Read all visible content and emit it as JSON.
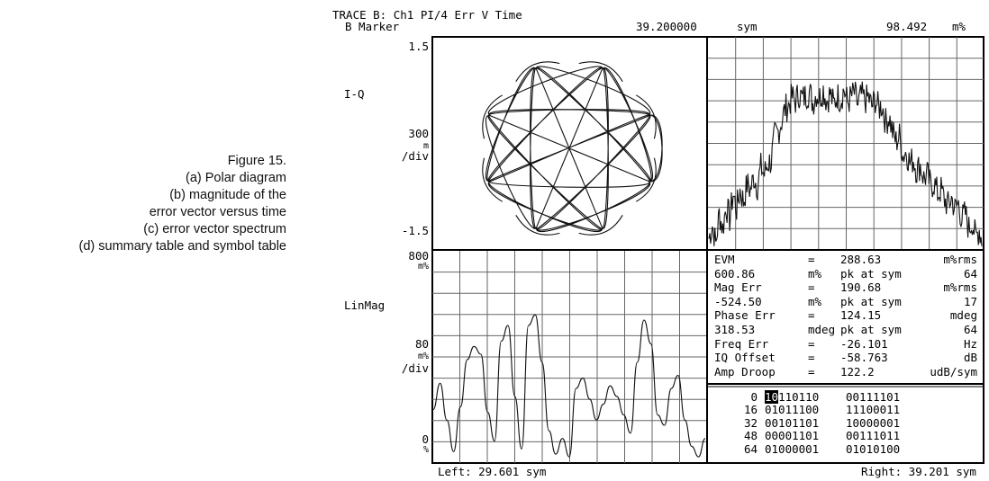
{
  "caption": {
    "lines": [
      "Figure 15.",
      "(a) Polar diagram",
      "(b) magnitude of the",
      "error vector versus time",
      "(c) error vector spectrum",
      "(d) summary table and symbol table"
    ]
  },
  "header": {
    "trace_title": "TRACE B: Ch1 PI/4 Err V Time",
    "marker_label": "B Marker",
    "marker_value": "39.200000",
    "marker_unit": "sym",
    "marker_reading": "98.492",
    "marker_reading_unit": "m%"
  },
  "polar": {
    "y_top": "1.5",
    "y_bottom": "-1.5",
    "mode": "I-Q",
    "scale_value": "300",
    "scale_unit": "m",
    "scale_div": "/div"
  },
  "spectrum": {
    "y_top": "800",
    "y_top_unit": "m%",
    "mode": "LinMag",
    "scale_value": "80",
    "scale_unit": "m%",
    "scale_div": "/div",
    "y_bottom": "0",
    "y_bottom_unit": "%",
    "left_label": "Left: 29.601 sym",
    "right_label": "Right: 39.201 sym"
  },
  "summary": {
    "rows": [
      {
        "name": "EVM",
        "eq": "=",
        "value": "288.63",
        "unit": "m%rms"
      },
      {
        "name": "600.86",
        "eq": "m%",
        "value": "pk at sym",
        "unit": "64"
      },
      {
        "name": "Mag Err",
        "eq": "=",
        "value": "190.68",
        "unit": "m%rms"
      },
      {
        "name": "-524.50",
        "eq": "m%",
        "value": "pk at sym",
        "unit": "17"
      },
      {
        "name": "Phase Err",
        "eq": "=",
        "value": "124.15",
        "unit": "mdeg"
      },
      {
        "name": "318.53",
        "eq": "mdeg",
        "value": "pk at sym",
        "unit": "64"
      },
      {
        "name": "Freq Err",
        "eq": "=",
        "value": "-26.101",
        "unit": "Hz"
      },
      {
        "name": "IQ Offset",
        "eq": "=",
        "value": "-58.763",
        "unit": "dB"
      },
      {
        "name": "Amp Droop",
        "eq": "=",
        "value": "122.2",
        "unit": "udB/sym"
      }
    ]
  },
  "symbols": {
    "rows": [
      {
        "index": "0",
        "first": "10",
        "rest1": "110110",
        "group2": "00111101"
      },
      {
        "index": "16",
        "first": "",
        "rest1": "01011100",
        "group2": "11100011"
      },
      {
        "index": "32",
        "first": "",
        "rest1": "00101101",
        "group2": "10000001"
      },
      {
        "index": "48",
        "first": "",
        "rest1": "00001101",
        "group2": "00111011"
      },
      {
        "index": "64",
        "first": "",
        "rest1": "01000001",
        "group2": "01010100"
      }
    ]
  },
  "chart_data": [
    {
      "type": "scatter",
      "title": "",
      "xlabel": "",
      "ylabel": "I-Q",
      "ylim": [
        -1.5,
        1.5
      ],
      "xlim": [
        -1.5,
        1.5
      ],
      "grid": false,
      "description_points": "constellation trajectory of pi/4 DQPSK, 8 outer lobes",
      "lobes": 8
    },
    {
      "type": "line",
      "title": "",
      "xlabel": "",
      "ylabel": "",
      "grid": true,
      "x": [
        0,
        1,
        2,
        3,
        4,
        5,
        6,
        7,
        8,
        9,
        10,
        11,
        12,
        13,
        14,
        15,
        16,
        17,
        18,
        19,
        20,
        21,
        22,
        23,
        24,
        25,
        26,
        27,
        28,
        29,
        30,
        31,
        32,
        33,
        34,
        35,
        36,
        37,
        38,
        39,
        40,
        41,
        42,
        43,
        44,
        45,
        46,
        47,
        48,
        49,
        50,
        51,
        52,
        53,
        54,
        55,
        56,
        57,
        58,
        59,
        60,
        61,
        62,
        63,
        64,
        65,
        66,
        67,
        68,
        69,
        70,
        71,
        72,
        73,
        74,
        75,
        76,
        77,
        78,
        79
      ],
      "values": [
        0.05,
        0.12,
        0.02,
        0.18,
        0.1,
        0.22,
        0.15,
        0.28,
        0.2,
        0.3,
        0.24,
        0.33,
        0.3,
        0.37,
        0.32,
        0.42,
        0.38,
        0.44,
        0.45,
        0.58,
        0.6,
        0.66,
        0.72,
        0.74,
        0.78,
        0.76,
        0.8,
        0.77,
        0.79,
        0.81,
        0.75,
        0.8,
        0.78,
        0.82,
        0.76,
        0.8,
        0.74,
        0.79,
        0.77,
        0.82,
        0.75,
        0.78,
        0.8,
        0.74,
        0.79,
        0.76,
        0.78,
        0.73,
        0.77,
        0.72,
        0.74,
        0.65,
        0.68,
        0.6,
        0.55,
        0.58,
        0.48,
        0.5,
        0.44,
        0.46,
        0.4,
        0.43,
        0.36,
        0.38,
        0.32,
        0.34,
        0.28,
        0.3,
        0.25,
        0.22,
        0.26,
        0.2,
        0.23,
        0.15,
        0.18,
        0.1,
        0.14,
        0.05,
        0.1,
        0.02
      ],
      "ylim": [
        0,
        1
      ]
    },
    {
      "type": "line",
      "title": "",
      "xlabel": "",
      "ylabel": "LinMag",
      "grid": true,
      "x": [
        0,
        1,
        2,
        3,
        4,
        5,
        6,
        7,
        8,
        9,
        10,
        11,
        12,
        13,
        14,
        15,
        16,
        17,
        18,
        19,
        20,
        21,
        22,
        23,
        24,
        25,
        26,
        27,
        28,
        29,
        30,
        31,
        32,
        33,
        34,
        35,
        36,
        37,
        38,
        39,
        40
      ],
      "values": [
        200,
        300,
        160,
        40,
        210,
        390,
        440,
        410,
        190,
        80,
        460,
        520,
        250,
        50,
        520,
        560,
        380,
        120,
        30,
        90,
        20,
        280,
        320,
        240,
        160,
        220,
        290,
        250,
        180,
        110,
        380,
        540,
        450,
        180,
        140,
        280,
        330,
        160,
        60,
        20,
        90
      ],
      "ylim": [
        0,
        800
      ],
      "yunit": "m%"
    }
  ]
}
